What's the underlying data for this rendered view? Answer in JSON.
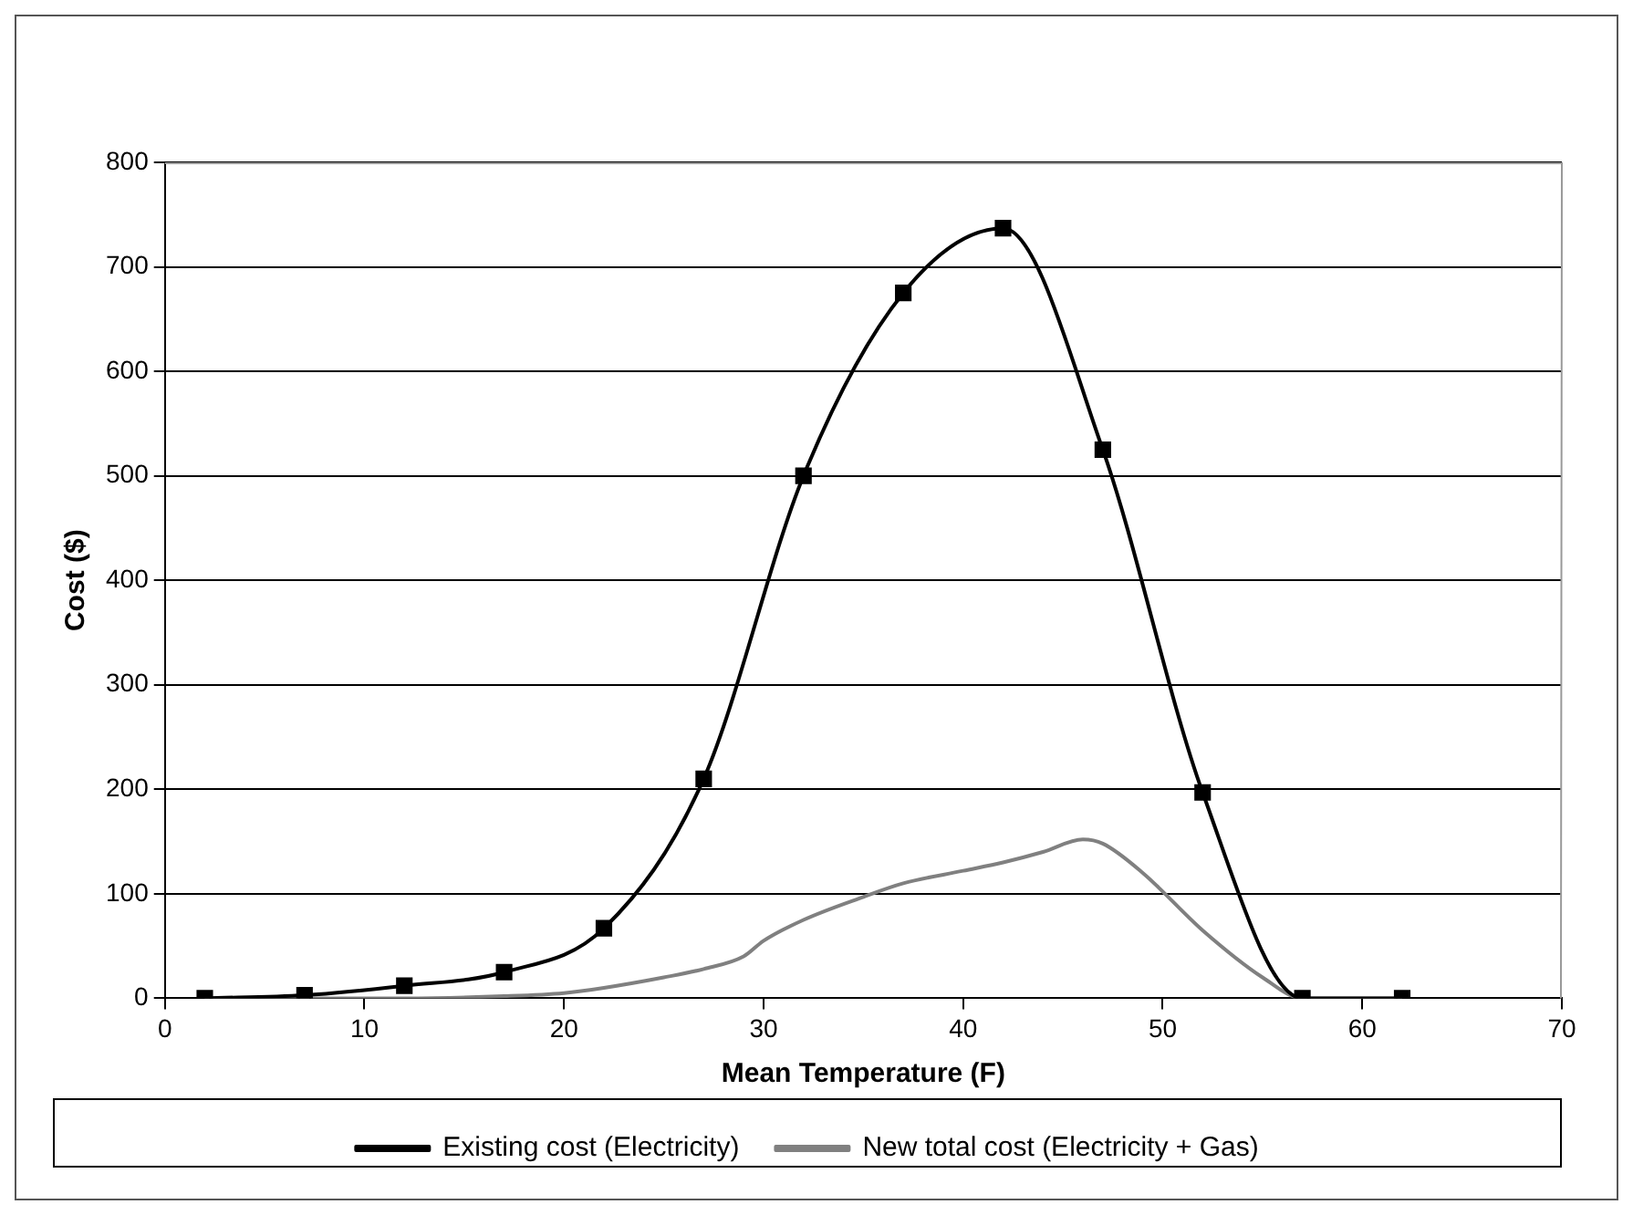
{
  "chart_data": {
    "type": "line",
    "xlabel": "Mean Temperature (F)",
    "ylabel": "Cost ($)",
    "xlim": [
      0,
      70
    ],
    "xticks": [
      0,
      10,
      20,
      30,
      40,
      50,
      60,
      70
    ],
    "ylim": [
      0,
      800
    ],
    "yticks": [
      0,
      100,
      200,
      300,
      400,
      500,
      600,
      700,
      800
    ],
    "grid": "y",
    "legend": "bottom",
    "series": [
      {
        "name": "Existing cost (Electricity)",
        "color": "#000000",
        "marker": "square",
        "x": [
          2,
          7,
          12,
          17,
          22,
          27,
          32,
          37,
          42,
          47,
          52,
          57,
          62
        ],
        "values": [
          0,
          3,
          12,
          25,
          67,
          210,
          500,
          675,
          737,
          525,
          197,
          0,
          0
        ]
      },
      {
        "name": "New total cost (Electricity + Gas)",
        "color": "#808080",
        "marker": "none",
        "x": [
          2,
          7,
          12,
          17,
          20,
          22,
          25,
          27,
          29,
          30,
          32,
          35,
          37,
          40,
          42,
          44,
          46,
          47,
          49,
          52,
          55,
          57,
          59,
          62
        ],
        "values": [
          0,
          0,
          0,
          2,
          5,
          10,
          20,
          28,
          40,
          55,
          75,
          97,
          110,
          122,
          130,
          140,
          152,
          148,
          120,
          65,
          20,
          0,
          0,
          0
        ]
      }
    ]
  }
}
